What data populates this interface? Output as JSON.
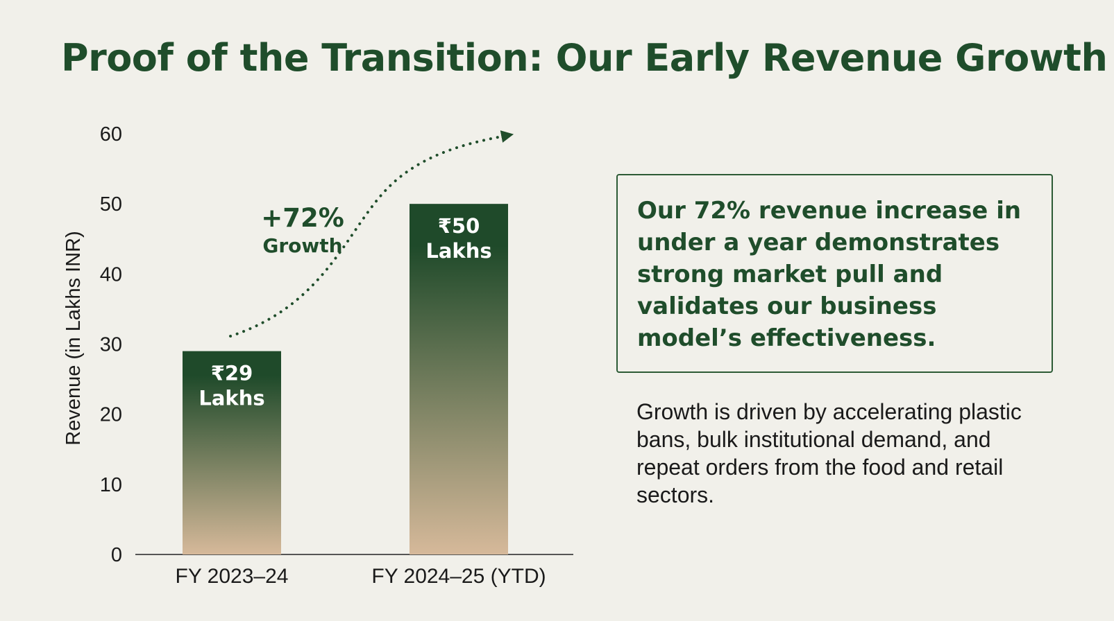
{
  "slide": {
    "title": "Proof of the Transition: Our Early Revenue Growth",
    "callout_text": "Our 72% revenue increase in under a year demonstrates strong market pull and validates our business model’s effectiveness.",
    "note_text": "Growth is driven by accelerating plastic bans, bulk institutional demand, and repeat orders from the food and retail sectors."
  },
  "colors": {
    "title": "#1f4d2b",
    "bar_top": "#1f4a2a",
    "bar_bottom": "#d6b99a",
    "background": "#f1f0ea"
  },
  "chart_data": {
    "type": "bar",
    "title": "",
    "xlabel": "",
    "ylabel": "Revenue (in Lakhs INR)",
    "ylim": [
      0,
      60
    ],
    "yticks": [
      0,
      10,
      20,
      30,
      40,
      50,
      60
    ],
    "grid": false,
    "categories": [
      "FY 2023–24",
      "FY 2024–25 (YTD)"
    ],
    "values": [
      29,
      50
    ],
    "data_labels": [
      {
        "value": "₹29",
        "unit": "Lakhs"
      },
      {
        "value": "₹50",
        "unit": "Lakhs"
      }
    ],
    "annotation": {
      "value": "+72%",
      "label": "Growth"
    }
  }
}
